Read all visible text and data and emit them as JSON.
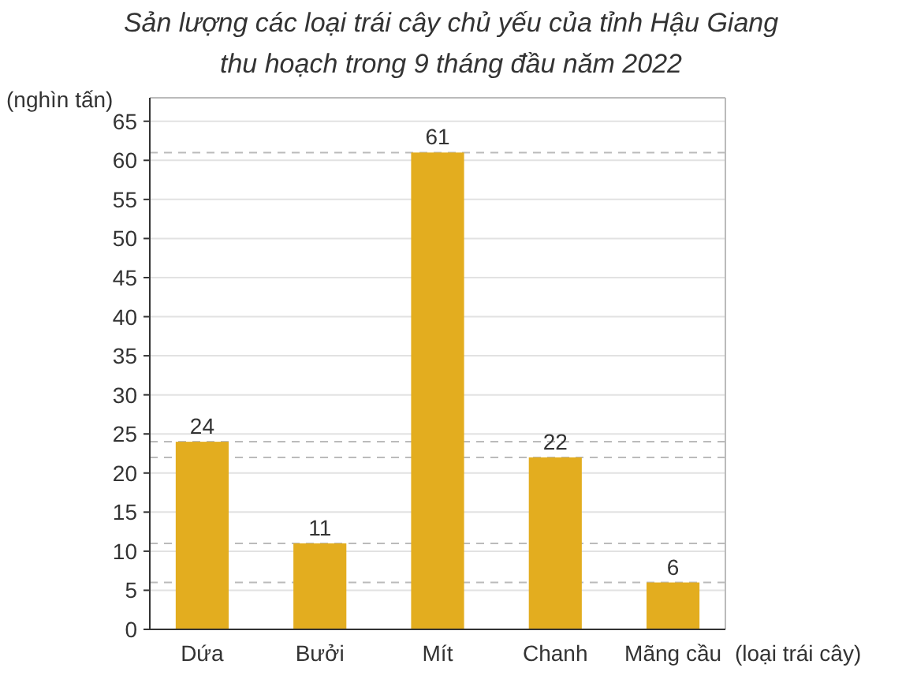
{
  "chart_data": {
    "type": "bar",
    "title": "Sản lượng các loại trái cây chủ yếu của tỉnh Hậu Giang thu hoạch trong 9 tháng đầu năm 2022",
    "xlabel": "(loại trái cây)",
    "ylabel": "(nghìn tấn)",
    "categories": [
      "Dứa",
      "Bưởi",
      "Mít",
      "Chanh",
      "Mãng cầu"
    ],
    "values": [
      24,
      11,
      61,
      22,
      6
    ],
    "color": "#e3ad1f",
    "ylim": [
      0,
      68
    ],
    "yticks": [
      0,
      5,
      10,
      15,
      20,
      25,
      30,
      35,
      40,
      45,
      50,
      55,
      60,
      65
    ],
    "grid": "y",
    "data_labels": true,
    "ref_lines": [
      {
        "axis": "y",
        "value": 61,
        "color": "#bbbbbb",
        "line_style": "dashed"
      },
      {
        "axis": "y",
        "value": 24,
        "color": "#bbbbbb",
        "line_style": "dashed"
      },
      {
        "axis": "y",
        "value": 22,
        "color": "#bbbbbb",
        "line_style": "dashed"
      },
      {
        "axis": "y",
        "value": 11,
        "color": "#bbbbbb",
        "line_style": "dashed"
      },
      {
        "axis": "y",
        "value": 6,
        "color": "#bbbbbb",
        "line_style": "dashed"
      }
    ]
  }
}
